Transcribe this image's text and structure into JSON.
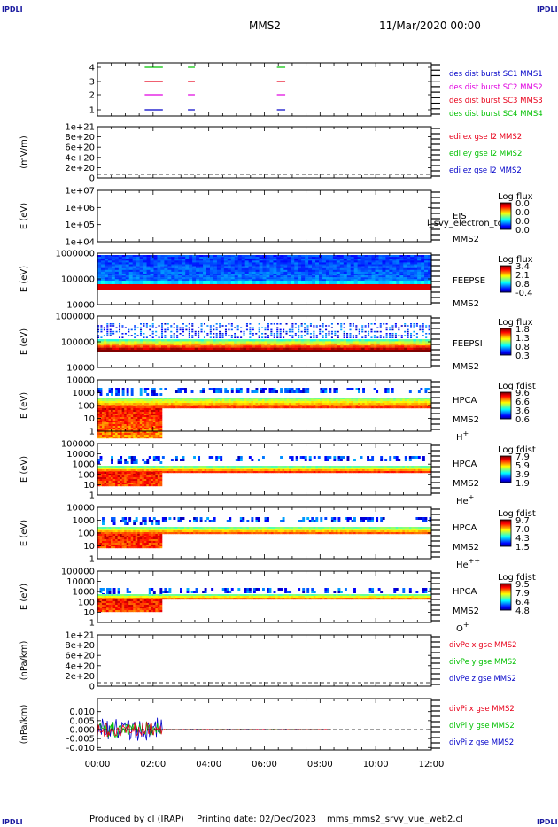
{
  "header": {
    "corner_label": "IPDLI",
    "spacecraft": "MMS2",
    "datetime": "11/Mar/2020 00:00"
  },
  "footer": {
    "produced_by": "Produced by cl (IRAP)",
    "printing_date": "Printing date: 02/Dec/2023",
    "filename": "mms_mms2_srvy_vue_web2.cl"
  },
  "colors": {
    "red": "#e8001a",
    "green": "#00c000",
    "blue": "#0000c8",
    "magenta": "#e000e0",
    "panel_bg_fill": "#d80000"
  },
  "chart_data": {
    "type": "heatmap",
    "time_axis": {
      "range": [
        "00:00",
        "12:00"
      ],
      "ticks": [
        "00:00",
        "02:00",
        "04:00",
        "06:00",
        "08:00",
        "10:00",
        "12:00"
      ]
    },
    "panels": [
      {
        "id": "burst",
        "kind": "lines",
        "yticks": [
          "4",
          "3",
          "2",
          "1"
        ],
        "legend": [
          {
            "label": "des dist burst SC1 MMS1",
            "color": "#0000c8"
          },
          {
            "label": "des dist burst SC2 MMS2",
            "color": "#e000e0"
          },
          {
            "label": "des dist burst SC3 MMS3",
            "color": "#e8001a"
          },
          {
            "label": "des dist burst SC4 MMS4",
            "color": "#00c000"
          }
        ],
        "segments_hours": [
          [
            1.7,
            2.35
          ],
          [
            3.25,
            3.5
          ],
          [
            6.45,
            6.75
          ]
        ]
      },
      {
        "id": "edi",
        "kind": "empty",
        "ylabel": "(mV/m)",
        "yticks": [
          "1e+21",
          "8e+20",
          "6e+20",
          "4e+20",
          "2e+20",
          "0"
        ],
        "legend": [
          {
            "label": "edi ex gse l2 MMS2",
            "color": "#e8001a"
          },
          {
            "label": "edi ey gse l2 MMS2",
            "color": "#00c000"
          },
          {
            "label": "edi ez gse l2 MMS2",
            "color": "#0000c8"
          }
        ]
      },
      {
        "id": "eis",
        "kind": "spectrogram",
        "ylabel": "E (eV)",
        "yticks": [
          "1e+07",
          "1e+06",
          "1e+05",
          "1e+04"
        ],
        "instrument": "EIS",
        "overlay_text": "l_svy_electron_to",
        "spacecraft": "MMS2",
        "colorbar_title": "Log flux",
        "colorbar_ticks": [
          "0.0",
          "0.0",
          "0.0",
          "0.0"
        ]
      },
      {
        "id": "feepse",
        "kind": "spectrogram",
        "ylabel": "E (eV)",
        "yticks": [
          "1000000",
          "100000",
          "10000"
        ],
        "instrument": "FEEPSE",
        "spacecraft": "MMS2",
        "colorbar_title": "Log flux",
        "colorbar_ticks": [
          "3.4",
          "2.1",
          "0.8",
          "-0.4"
        ]
      },
      {
        "id": "feepsi",
        "kind": "spectrogram",
        "ylabel": "E (eV)",
        "yticks": [
          "1000000",
          "100000",
          "10000"
        ],
        "instrument": "FEEPSI",
        "spacecraft": "MMS2",
        "colorbar_title": "Log flux",
        "colorbar_ticks": [
          "1.8",
          "1.3",
          "0.8",
          "0.3"
        ]
      },
      {
        "id": "hpca_h",
        "kind": "spectrogram",
        "ylabel": "E (eV)",
        "yticks": [
          "10000",
          "1000",
          "100",
          "10",
          "1"
        ],
        "instrument": "HPCA",
        "spacecraft": "MMS2",
        "species": "H",
        "species_sup": "+",
        "colorbar_title": "Log fdist",
        "colorbar_ticks": [
          "9.6",
          "6.6",
          "3.6",
          "0.6"
        ]
      },
      {
        "id": "hpca_he",
        "kind": "spectrogram",
        "ylabel": "E (eV)",
        "yticks": [
          "100000",
          "10000",
          "1000",
          "100",
          "10",
          "1"
        ],
        "instrument": "HPCA",
        "spacecraft": "MMS2",
        "species": "He",
        "species_sup": "+",
        "colorbar_title": "Log fdist",
        "colorbar_ticks": [
          "7.9",
          "5.9",
          "3.9",
          "1.9"
        ]
      },
      {
        "id": "hpca_hepp",
        "kind": "spectrogram",
        "ylabel": "E (eV)",
        "yticks": [
          "10000",
          "1000",
          "100",
          "10",
          "1"
        ],
        "instrument": "HPCA",
        "spacecraft": "MMS2",
        "species": "He",
        "species_sup": "++",
        "colorbar_title": "Log fdist",
        "colorbar_ticks": [
          "9.7",
          "7.0",
          "4.3",
          "1.5"
        ]
      },
      {
        "id": "hpca_o",
        "kind": "spectrogram",
        "ylabel": "E (eV)",
        "yticks": [
          "100000",
          "10000",
          "1000",
          "100",
          "10",
          "1"
        ],
        "instrument": "HPCA",
        "spacecraft": "MMS2",
        "species": "O",
        "species_sup": "+",
        "colorbar_title": "Log fdist",
        "colorbar_ticks": [
          "9.5",
          "7.9",
          "6.4",
          "4.8"
        ]
      },
      {
        "id": "divpe",
        "kind": "empty",
        "ylabel": "(nPa/km)",
        "yticks": [
          "1e+21",
          "8e+20",
          "6e+20",
          "4e+20",
          "2e+20",
          "0"
        ],
        "legend": [
          {
            "label": "divPe x gse MMS2",
            "color": "#e8001a"
          },
          {
            "label": "divPe y gse MMS2",
            "color": "#00c000"
          },
          {
            "label": "divPe z gse MMS2",
            "color": "#0000c8"
          }
        ]
      },
      {
        "id": "divpi",
        "kind": "timeseries",
        "ylabel": "(nPa/km)",
        "yticks": [
          "0.010",
          "0.005",
          "0.000",
          "-0.005",
          "-0.010"
        ],
        "ylim": [
          -0.012,
          0.012
        ],
        "legend": [
          {
            "label": "divPi x gse MMS2",
            "color": "#e8001a"
          },
          {
            "label": "divPi y gse MMS2",
            "color": "#00c000"
          },
          {
            "label": "divPi z gse MMS2",
            "color": "#0000c8"
          }
        ],
        "active_until_hours": 2.3,
        "quiet_until_hours": 8.4
      }
    ]
  }
}
